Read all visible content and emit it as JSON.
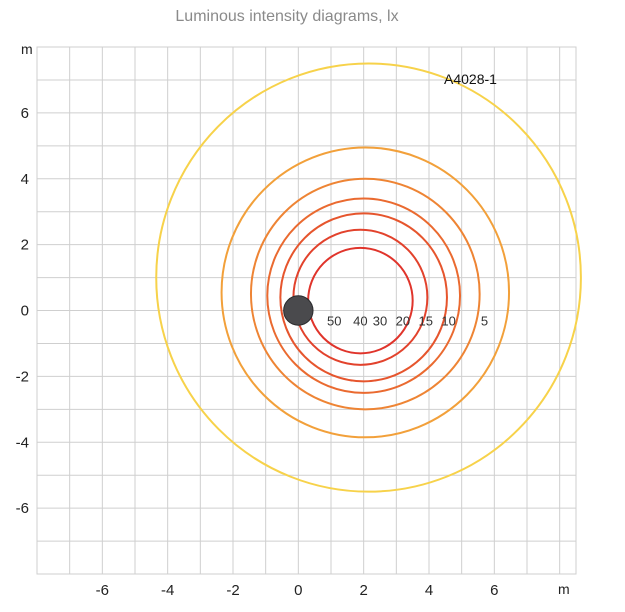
{
  "chart_data": {
    "type": "contour",
    "title": "Luminous intensity diagrams, lx",
    "annotation": "A4028-1",
    "xlabel": "m",
    "ylabel": "m",
    "xlim": [
      -8,
      8.5
    ],
    "ylim": [
      -8,
      8
    ],
    "grid": true,
    "x_ticks": [
      -6,
      -4,
      -2,
      0,
      2,
      4,
      6
    ],
    "y_ticks": [
      6,
      4,
      2,
      0,
      -2,
      -4,
      -6
    ],
    "light_source": {
      "x": 0,
      "y": 0
    },
    "contours": [
      {
        "lux": "50",
        "cx": 1.9,
        "cy": 0.3,
        "r": 1.6,
        "color": "#e0342b"
      },
      {
        "lux": "40",
        "cx": 1.9,
        "cy": 0.4,
        "r": 2.05,
        "color": "#e2422c"
      },
      {
        "lux": "30",
        "cx": 2.0,
        "cy": 0.4,
        "r": 2.55,
        "color": "#e6552d"
      },
      {
        "lux": "20",
        "cx": 2.0,
        "cy": 0.45,
        "r": 2.95,
        "color": "#ea6a30"
      },
      {
        "lux": "15",
        "cx": 2.05,
        "cy": 0.5,
        "r": 3.5,
        "color": "#ee8434"
      },
      {
        "lux": "10",
        "cx": 2.05,
        "cy": 0.55,
        "r": 4.4,
        "color": "#f2a03a"
      },
      {
        "lux": "5",
        "cx": 2.15,
        "cy": 1.0,
        "r": 6.5,
        "color": "#f7d24a"
      }
    ],
    "contour_label_x": [
      1.1,
      1.9,
      2.5,
      3.2,
      3.9,
      4.6,
      5.7
    ],
    "contour_label_y": -0.3
  }
}
